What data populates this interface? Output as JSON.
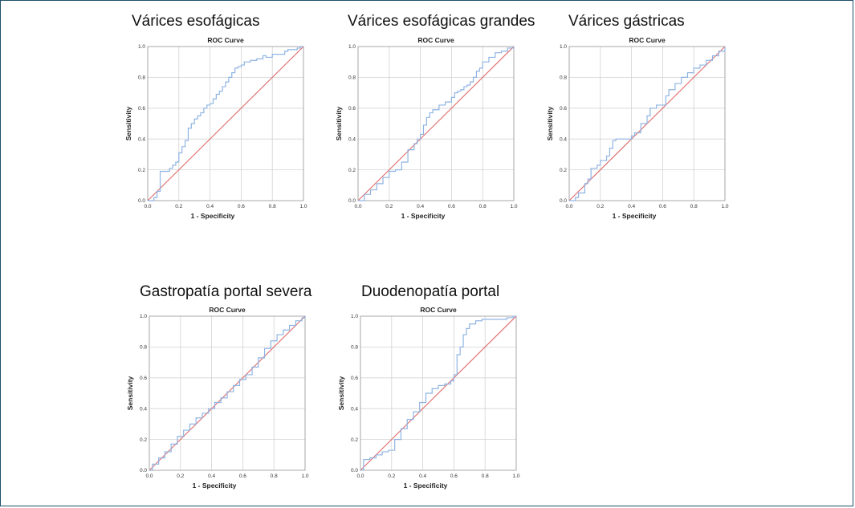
{
  "colors": {
    "border": "#1f4e6b",
    "roc_curve": "#8fb4e3",
    "reference_line": "#e06a6a",
    "grid": "#d3d3d3"
  },
  "chart_data": [
    {
      "type": "line",
      "panel_title": "Várices esofágicas",
      "title": "ROC Curve",
      "xlabel": "1 - Specificity",
      "ylabel": "Sensitivity",
      "xlim": [
        0,
        1
      ],
      "ylim": [
        0,
        1
      ],
      "xticks": [
        "0.0",
        "0.2",
        "0.4",
        "0.6",
        "0.8",
        "1.0"
      ],
      "yticks": [
        "0.0",
        "0.2",
        "0.4",
        "0.6",
        "0.8",
        "1.0"
      ],
      "grid": true,
      "series": [
        {
          "x": [
            0,
            0.04,
            0.06,
            0.08,
            0.08,
            0.14,
            0.16,
            0.18,
            0.2,
            0.22,
            0.24,
            0.26,
            0.28,
            0.3,
            0.32,
            0.34,
            0.36,
            0.38,
            0.4,
            0.42,
            0.44,
            0.46,
            0.48,
            0.5,
            0.52,
            0.54,
            0.56,
            0.58,
            0.6,
            0.62,
            0.66,
            0.7,
            0.74,
            0.76,
            0.8,
            0.84,
            0.86,
            0.88,
            0.9,
            0.92,
            0.96,
            0.98,
            1.0
          ],
          "y": [
            0,
            0.02,
            0.06,
            0.1,
            0.19,
            0.21,
            0.23,
            0.25,
            0.31,
            0.35,
            0.39,
            0.47,
            0.5,
            0.53,
            0.55,
            0.57,
            0.6,
            0.62,
            0.63,
            0.66,
            0.69,
            0.71,
            0.74,
            0.77,
            0.8,
            0.83,
            0.86,
            0.87,
            0.88,
            0.9,
            0.91,
            0.92,
            0.94,
            0.93,
            0.95,
            0.95,
            0.95,
            0.97,
            0.98,
            0.98,
            0.99,
            1.0,
            1.0
          ]
        },
        {
          "x": [
            0,
            1
          ],
          "y": [
            0,
            1
          ]
        }
      ]
    },
    {
      "type": "line",
      "panel_title": "Várices esofágicas grandes",
      "title": "ROC Curve",
      "xlabel": "1 - Specificity",
      "ylabel": "Sensitivity",
      "xlim": [
        0,
        1
      ],
      "ylim": [
        0,
        1
      ],
      "xticks": [
        "0.0",
        "0.2",
        "0.4",
        "0.6",
        "0.8",
        "1.0"
      ],
      "yticks": [
        "0.0",
        "0.2",
        "0.4",
        "0.6",
        "0.8",
        "1.0"
      ],
      "grid": true,
      "series": [
        {
          "x": [
            0,
            0.04,
            0.08,
            0.12,
            0.16,
            0.2,
            0.24,
            0.28,
            0.32,
            0.36,
            0.38,
            0.4,
            0.42,
            0.44,
            0.46,
            0.48,
            0.52,
            0.56,
            0.6,
            0.62,
            0.64,
            0.66,
            0.68,
            0.7,
            0.72,
            0.74,
            0.76,
            0.78,
            0.8,
            0.84,
            0.88,
            0.92,
            0.96,
            1.0
          ],
          "y": [
            0,
            0.04,
            0.07,
            0.11,
            0.15,
            0.19,
            0.2,
            0.25,
            0.33,
            0.37,
            0.4,
            0.43,
            0.49,
            0.54,
            0.57,
            0.59,
            0.62,
            0.64,
            0.67,
            0.7,
            0.71,
            0.72,
            0.74,
            0.75,
            0.77,
            0.8,
            0.84,
            0.86,
            0.9,
            0.93,
            0.96,
            0.97,
            0.99,
            1.0
          ]
        },
        {
          "x": [
            0,
            1
          ],
          "y": [
            0,
            1
          ]
        }
      ]
    },
    {
      "type": "line",
      "panel_title": "Várices gástricas",
      "title": "ROC Curve",
      "xlabel": "1 - Specificity",
      "ylabel": "Sensitivity",
      "xlim": [
        0,
        1
      ],
      "ylim": [
        0,
        1
      ],
      "xticks": [
        "0.0",
        "0.2",
        "0.4",
        "0.6",
        "0.8",
        "1.0"
      ],
      "yticks": [
        "0.0",
        "0.2",
        "0.4",
        "0.6",
        "0.8",
        "1.0"
      ],
      "grid": true,
      "series": [
        {
          "x": [
            0,
            0.04,
            0.06,
            0.1,
            0.12,
            0.14,
            0.18,
            0.2,
            0.24,
            0.26,
            0.28,
            0.3,
            0.34,
            0.38,
            0.4,
            0.42,
            0.46,
            0.5,
            0.52,
            0.56,
            0.6,
            0.62,
            0.64,
            0.68,
            0.72,
            0.76,
            0.8,
            0.84,
            0.88,
            0.92,
            0.96,
            1.0
          ],
          "y": [
            0,
            0.02,
            0.05,
            0.11,
            0.14,
            0.21,
            0.23,
            0.26,
            0.29,
            0.34,
            0.39,
            0.4,
            0.4,
            0.4,
            0.42,
            0.44,
            0.5,
            0.55,
            0.6,
            0.62,
            0.62,
            0.68,
            0.72,
            0.76,
            0.8,
            0.83,
            0.86,
            0.88,
            0.91,
            0.94,
            0.97,
            1.0
          ]
        },
        {
          "x": [
            0,
            1
          ],
          "y": [
            0,
            1
          ]
        }
      ]
    },
    {
      "type": "line",
      "panel_title": "Gastropatía portal severa",
      "title": "ROC Curve",
      "xlabel": "1 - Specificity",
      "ylabel": "Sensitivity",
      "xlim": [
        0,
        1
      ],
      "ylim": [
        0,
        1
      ],
      "xticks": [
        "0.0",
        "0.2",
        "0.4",
        "0.6",
        "0.8",
        "1.0"
      ],
      "yticks": [
        "0.0",
        "0.2",
        "0.4",
        "0.6",
        "0.8",
        "1.0"
      ],
      "grid": true,
      "series": [
        {
          "x": [
            0,
            0.02,
            0.06,
            0.1,
            0.14,
            0.18,
            0.22,
            0.26,
            0.3,
            0.34,
            0.38,
            0.42,
            0.46,
            0.5,
            0.54,
            0.58,
            0.62,
            0.66,
            0.7,
            0.74,
            0.78,
            0.82,
            0.86,
            0.9,
            0.94,
            0.98,
            1.0
          ],
          "y": [
            0,
            0.04,
            0.08,
            0.12,
            0.17,
            0.22,
            0.26,
            0.3,
            0.34,
            0.37,
            0.4,
            0.44,
            0.47,
            0.51,
            0.55,
            0.59,
            0.62,
            0.67,
            0.73,
            0.79,
            0.84,
            0.88,
            0.91,
            0.94,
            0.97,
            0.99,
            1.0
          ]
        },
        {
          "x": [
            0,
            1
          ],
          "y": [
            0,
            1
          ]
        }
      ]
    },
    {
      "type": "line",
      "panel_title": "Duodenopatía portal",
      "title": "ROC Curve",
      "xlabel": "1 - Specificity",
      "ylabel": "Sensitivity",
      "xlim": [
        0,
        1
      ],
      "ylim": [
        0,
        1
      ],
      "xticks": [
        "0.0",
        "0.2",
        "0.4",
        "0.6",
        "0.8",
        "1.0"
      ],
      "yticks": [
        "0.0",
        "0.2",
        "0.4",
        "0.6",
        "0.8",
        "1.0"
      ],
      "grid": true,
      "series": [
        {
          "x": [
            0,
            0.02,
            0.06,
            0.1,
            0.14,
            0.18,
            0.22,
            0.26,
            0.3,
            0.34,
            0.38,
            0.42,
            0.46,
            0.5,
            0.54,
            0.58,
            0.6,
            0.62,
            0.64,
            0.66,
            0.68,
            0.7,
            0.74,
            0.78,
            0.82,
            0.86,
            0.9,
            0.94,
            0.98,
            1.0
          ],
          "y": [
            0,
            0.07,
            0.08,
            0.1,
            0.12,
            0.13,
            0.2,
            0.27,
            0.33,
            0.38,
            0.44,
            0.5,
            0.53,
            0.55,
            0.56,
            0.58,
            0.62,
            0.75,
            0.8,
            0.88,
            0.92,
            0.95,
            0.97,
            0.98,
            0.98,
            0.98,
            0.98,
            0.99,
            1.0,
            1.0
          ]
        },
        {
          "x": [
            0,
            1
          ],
          "y": [
            0,
            1
          ]
        }
      ]
    }
  ]
}
